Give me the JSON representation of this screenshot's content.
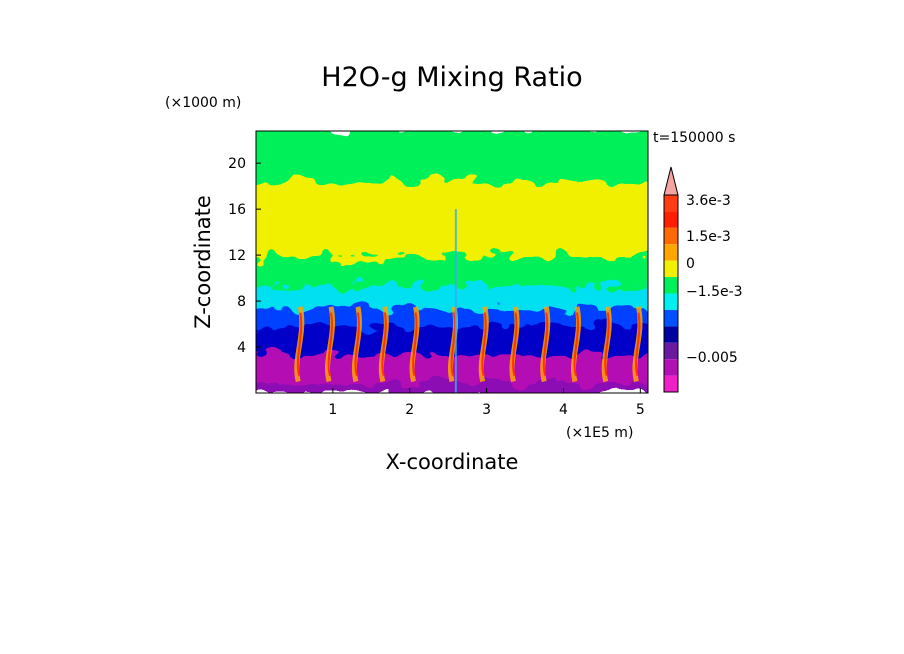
{
  "chart_data": {
    "type": "heatmap",
    "title": "H2O-g Mixing Ratio",
    "xlabel": "X-coordinate",
    "ylabel": "Z-coordinate",
    "x_unit": "(×1E5 m)",
    "y_unit": "(×1000 m)",
    "time_label": "t=150000 s",
    "xlim": [
      0,
      5.1
    ],
    "ylim": [
      0,
      22.8
    ],
    "x_ticks": [
      1,
      2,
      3,
      4,
      5
    ],
    "y_ticks": [
      4,
      8,
      12,
      16,
      20
    ],
    "x_tick_labels": [
      "1",
      "2",
      "3",
      "4",
      "5"
    ],
    "y_tick_labels": [
      "4",
      "8",
      "12",
      "16",
      "20"
    ],
    "colorbar": {
      "labels": [
        "3.6e-3",
        "1.5e-3",
        "0",
        "−1.5e-3",
        "−0.005"
      ],
      "levels_top_to_bottom": [
        "#f4a3a3",
        "#ff3c14",
        "#ff1e00",
        "#ff6a00",
        "#ffa500",
        "#f0f000",
        "#00f05a",
        "#00f0f0",
        "#0050ff",
        "#0000a0",
        "#6a1aa0",
        "#b40fb4",
        "#f020c8"
      ]
    },
    "z_bands": [
      {
        "from": 0,
        "to": 1,
        "value_label": "−0.005",
        "color": "#8c10b4"
      },
      {
        "from": 1,
        "to": 3.5,
        "value_label": "−0.005",
        "color": "#b40fb4"
      },
      {
        "from": 3.5,
        "to": 6,
        "value_label": "−1.5e-3",
        "color": "#0000c8"
      },
      {
        "from": 6,
        "to": 7.5,
        "value_label": "−1.5e-3",
        "color": "#0040ff"
      },
      {
        "from": 7.5,
        "to": 9.5,
        "value_label": "−1.5e-3",
        "color": "#00e0f0"
      },
      {
        "from": 9.5,
        "to": 12,
        "value_label": "0",
        "color": "#00f05a"
      },
      {
        "from": 12,
        "to": 18.5,
        "value_label": "0",
        "color": "#f0f000"
      },
      {
        "from": 18.5,
        "to": 22.8,
        "value_label": "0",
        "color": "#00f05a"
      }
    ]
  }
}
